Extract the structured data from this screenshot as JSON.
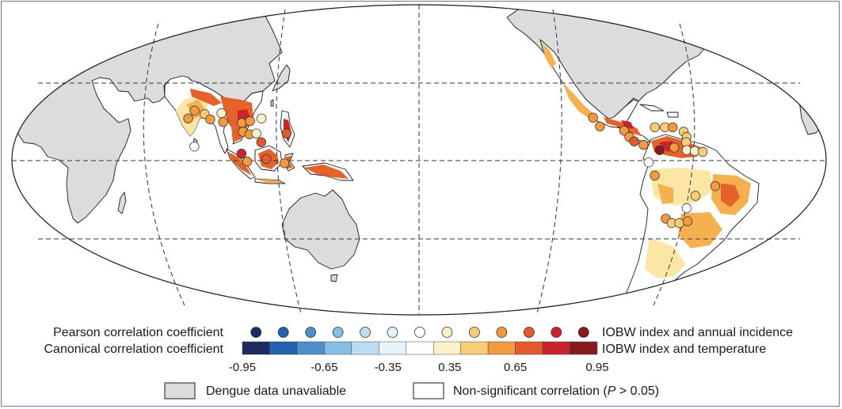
{
  "legend": {
    "pearson_label": "Pearson correlation coefficient",
    "canonical_label": "Canonical correlation coefficient",
    "pearson_desc": "IOBW index and annual incidence",
    "canonical_desc": "IOBW index and temperature",
    "ticks": [
      "-0.95",
      "-0.65",
      "-0.35",
      "0.35",
      "0.65",
      "0.95"
    ],
    "tick_values": [
      -0.95,
      -0.65,
      -0.35,
      0.35,
      0.65,
      0.95
    ],
    "colors": [
      "#1f2a63",
      "#2161ad",
      "#4d8fcb",
      "#86bde2",
      "#bcdcf1",
      "#e6f3fa",
      "#ffffff",
      "#fdf1c9",
      "#f8cd78",
      "#f29a3e",
      "#e4592b",
      "#c92429",
      "#861a1c"
    ],
    "unavailable_label": "Dengue data unavaliable",
    "nonsig_label": "Non-significant correlation (",
    "nonsig_p": "P",
    "nonsig_tail": " > 0.05)"
  },
  "map_colors": {
    "land": "#dcdcdc",
    "ocean": "#ffffff",
    "low": "#fbe6a6",
    "mid": "#f5b04f",
    "high": "#e6622b",
    "top": "#c92429"
  },
  "sites": [
    {
      "lon": 78.0,
      "lat": 28.0,
      "r": 0.62
    },
    {
      "lon": 83.0,
      "lat": 26.0,
      "r": 0.55
    },
    {
      "lon": 90.5,
      "lat": 26.5,
      "r": 0.35
    },
    {
      "lon": 86.0,
      "lat": 23.0,
      "r": 0.62
    },
    {
      "lon": 76.0,
      "lat": 23.5,
      "r": 0.6
    },
    {
      "lon": 92.0,
      "lat": 21.5,
      "r": 0.62
    },
    {
      "lon": 100.5,
      "lat": 21.0,
      "r": 0.6
    },
    {
      "lon": 104.0,
      "lat": 22.0,
      "r": 0.62
    },
    {
      "lon": 109.0,
      "lat": 23.5,
      "r": 0.35
    },
    {
      "lon": 101.5,
      "lat": 16.0,
      "r": 0.6
    },
    {
      "lon": 104.5,
      "lat": 14.5,
      "r": 0.62
    },
    {
      "lon": 107.5,
      "lat": 15.0,
      "r": 0.35
    },
    {
      "lon": 110.0,
      "lat": 10.0,
      "r": 0.72
    },
    {
      "lon": 121.0,
      "lat": 15.0,
      "r": 0.7
    },
    {
      "lon": 80.5,
      "lat": 7.5,
      "r": 0.3
    },
    {
      "lon": 101.5,
      "lat": 3.5,
      "r": 0.85
    },
    {
      "lon": 104.0,
      "lat": -1.0,
      "r": 0.62
    },
    {
      "lon": 112.5,
      "lat": 0.5,
      "r": 0.7
    },
    {
      "lon": 120.5,
      "lat": -2.0,
      "r": 0.62
    },
    {
      "lon": -101.5,
      "lat": 24.0,
      "r": 0.6
    },
    {
      "lon": -99.0,
      "lat": 19.0,
      "r": 0.62
    },
    {
      "lon": -88.5,
      "lat": 16.5,
      "r": 0.6
    },
    {
      "lon": -86.5,
      "lat": 13.0,
      "r": 0.62
    },
    {
      "lon": -84.5,
      "lat": 10.5,
      "r": 0.75
    },
    {
      "lon": -80.5,
      "lat": 8.5,
      "r": 0.6
    },
    {
      "lon": -74.5,
      "lat": 18.5,
      "r": 0.55
    },
    {
      "lon": -70.0,
      "lat": 18.5,
      "r": 0.55
    },
    {
      "lon": -66.5,
      "lat": 18.5,
      "r": 0.62
    },
    {
      "lon": -62.0,
      "lat": 16.0,
      "r": 0.55
    },
    {
      "lon": -61.0,
      "lat": 13.0,
      "r": 0.55
    },
    {
      "lon": -61.5,
      "lat": 10.0,
      "r": 0.55
    },
    {
      "lon": -73.5,
      "lat": 5.5,
      "r": 0.92
    },
    {
      "lon": -67.0,
      "lat": 7.0,
      "r": 0.62
    },
    {
      "lon": -61.5,
      "lat": 5.5,
      "r": 0.35
    },
    {
      "lon": -58.0,
      "lat": 5.0,
      "r": 0.4
    },
    {
      "lon": -54.5,
      "lat": 4.5,
      "r": 0.55
    },
    {
      "lon": -78.5,
      "lat": -1.5,
      "r": 0.3
    },
    {
      "lon": -75.5,
      "lat": -9.0,
      "r": 0.6
    },
    {
      "lon": -48.0,
      "lat": -15.0,
      "r": 0.62
    },
    {
      "lon": -56.0,
      "lat": -20.5,
      "r": 0.55
    },
    {
      "lon": -58.5,
      "lat": -27.5,
      "r": 0.3
    },
    {
      "lon": -66.5,
      "lat": -33.5,
      "r": 0.6
    },
    {
      "lon": -63.0,
      "lat": -36.0,
      "r": 0.55
    },
    {
      "lon": -59.5,
      "lat": -36.0,
      "r": 0.55
    },
    {
      "lon": -56.0,
      "lat": -35.0,
      "r": 0.6
    }
  ]
}
